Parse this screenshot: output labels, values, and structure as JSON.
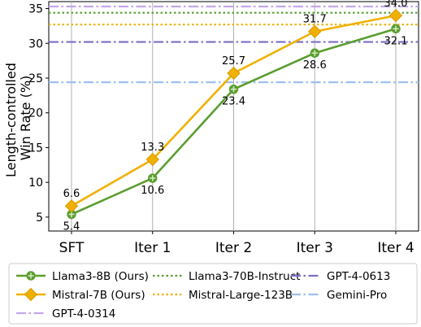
{
  "chart_data": {
    "type": "line",
    "title": "",
    "xlabel": "",
    "ylabel": "Length-controlled\nWin Rate (%)",
    "categories": [
      "SFT",
      "Iter 1",
      "Iter 2",
      "Iter 3",
      "Iter 4"
    ],
    "ylim": [
      3,
      36
    ],
    "yticks": [
      5,
      10,
      15,
      20,
      25,
      30,
      35
    ],
    "grid": "vertical",
    "legend_position": "bottom",
    "series": [
      {
        "name": "Llama3-8B (Ours)",
        "values": [
          5.4,
          10.6,
          23.4,
          28.6,
          32.1
        ],
        "labels": [
          "5.4",
          "10.6",
          "23.4",
          "28.6",
          "32.1"
        ],
        "color": "#5a9e2f",
        "marker": "plus-circle",
        "label_pos": "below"
      },
      {
        "name": "Mistral-7B (Ours)",
        "values": [
          6.6,
          13.3,
          25.7,
          31.7,
          34.0
        ],
        "labels": [
          "6.6",
          "13.3",
          "25.7",
          "31.7",
          "34.0"
        ],
        "color": "#f0b000",
        "marker": "diamond",
        "label_pos": "above"
      }
    ],
    "reference_lines": [
      {
        "name": "Llama3-70B-Instruct",
        "value": 34.4,
        "color": "#5a9e2f",
        "style": "dotted"
      },
      {
        "name": "Mistral-Large-123B",
        "value": 32.7,
        "color": "#f0b000",
        "style": "dotted"
      },
      {
        "name": "GPT-4-0613",
        "value": 30.2,
        "color": "#7b6fc7",
        "style": "dashdot"
      },
      {
        "name": "Gemini-Pro",
        "value": 24.4,
        "color": "#9ec0ee",
        "style": "dashdot"
      },
      {
        "name": "GPT-4-0314",
        "value": 35.3,
        "color": "#c3a6ea",
        "style": "dashdot"
      }
    ],
    "legend": [
      [
        "Llama3-8B (Ours)",
        "Llama3-70B-Instruct",
        "GPT-4-0613"
      ],
      [
        "Mistral-7B (Ours)",
        "Mistral-Large-123B",
        "Gemini-Pro"
      ],
      [
        "GPT-4-0314"
      ]
    ]
  }
}
